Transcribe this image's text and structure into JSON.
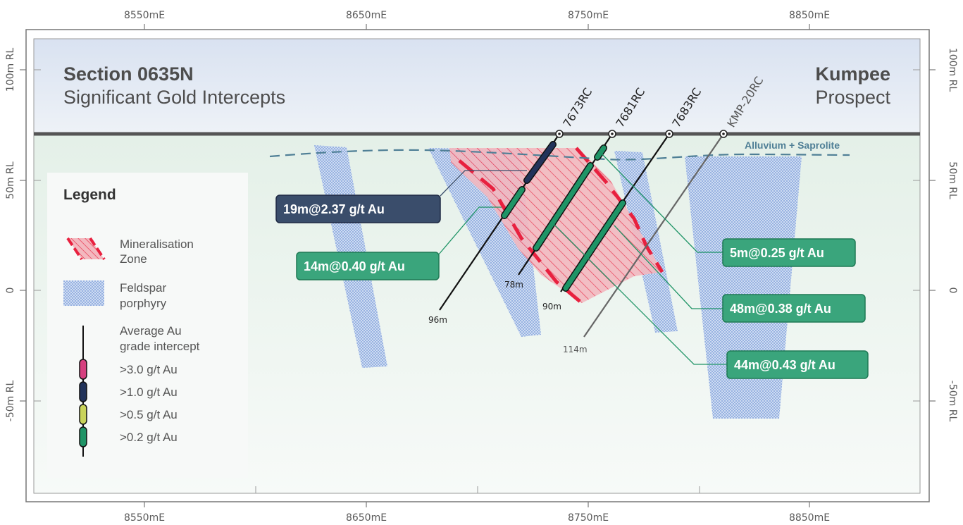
{
  "title": {
    "section": "Section 0635N",
    "subtitle": "Significant Gold Intercepts",
    "prospect_name": "Kumpee",
    "prospect_word": "Prospect"
  },
  "axes": {
    "easting_labels": [
      "8550mE",
      "8650mE",
      "8750mE",
      "8850mE"
    ],
    "rl_labels": [
      "100m RL",
      "50m RL",
      "0",
      "-50m RL"
    ]
  },
  "surface_label": "Alluvium + Saprolite",
  "drillholes": [
    {
      "id": "7673RC",
      "depth_label": "96m",
      "color": "#111111"
    },
    {
      "id": "7681RC",
      "depth_label": "78m",
      "color": "#111111"
    },
    {
      "id": "7683RC",
      "depth_label": "90m",
      "color": "#111111"
    },
    {
      "id": "KMP-20RC",
      "depth_label": "114m",
      "color": "#555555"
    }
  ],
  "intercepts": [
    {
      "label": "19m@2.37 g/t Au",
      "color": "#3a4d6b",
      "border": "#1f2a44"
    },
    {
      "label": "14m@0.40 g/t Au",
      "color": "#3aa57c",
      "border": "#1f7a55"
    },
    {
      "label": "5m@0.25 g/t Au",
      "color": "#3aa57c",
      "border": "#1f7a55"
    },
    {
      "label": "48m@0.38 g/t Au",
      "color": "#3aa57c",
      "border": "#1f7a55"
    },
    {
      "label": "44m@0.43 g/t Au",
      "color": "#3aa57c",
      "border": "#1f7a55"
    }
  ],
  "legend": {
    "title": "Legend",
    "mineralisation": [
      "Mineralisation",
      "Zone"
    ],
    "porphyry": [
      "Feldspar",
      "porphyry"
    ],
    "intercept_heading": [
      "Average Au",
      "grade intercept"
    ],
    "grades": [
      {
        "label": ">3.0 g/t Au",
        "color": "#d6407f"
      },
      {
        "label": ">1.0 g/t Au",
        "color": "#22335a"
      },
      {
        "label": ">0.5 g/t Au",
        "color": "#c9d35a"
      },
      {
        "label": ">0.2 g/t Au",
        "color": "#1f9466"
      }
    ]
  },
  "colors": {
    "mineralisation": "#e8213f",
    "porphyry": "#9ab8e6",
    "intercept_green": "#1f9466",
    "intercept_navy": "#22335a",
    "leader_green": "#1f9466",
    "leader_navy": "#3a4d6b"
  }
}
